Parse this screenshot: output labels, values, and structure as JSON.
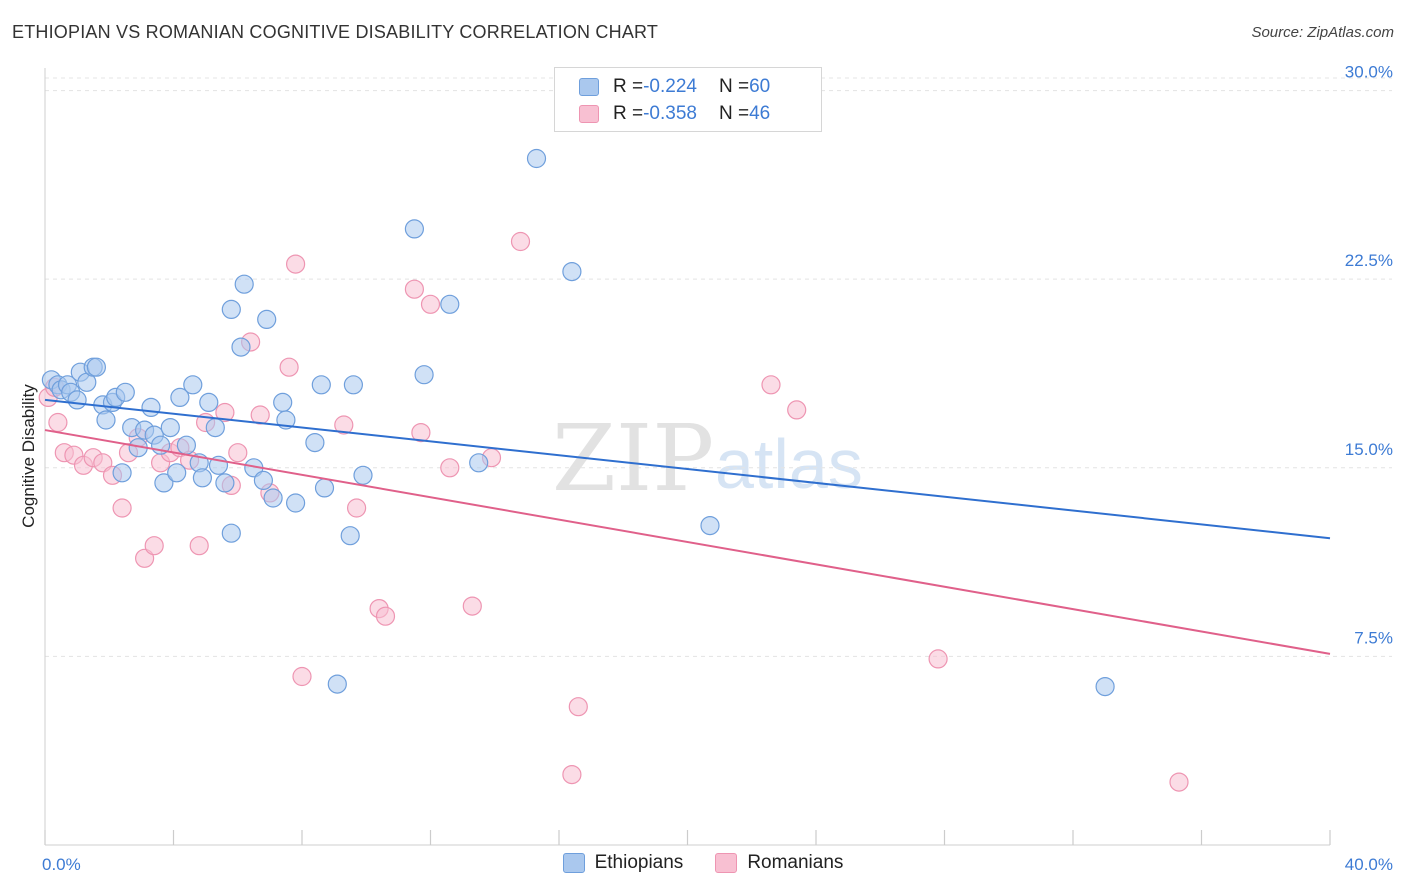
{
  "title": "ETHIOPIAN VS ROMANIAN COGNITIVE DISABILITY CORRELATION CHART",
  "source": "Source: ZipAtlas.com",
  "watermark": {
    "zip": "ZIP",
    "atlas": "atlas"
  },
  "legend": {
    "ethiopians": {
      "r_label": "R = ",
      "r_value": "-0.224",
      "n_label": "N = ",
      "n_value": "60"
    },
    "romanians": {
      "r_label": "R = ",
      "r_value": "-0.358",
      "n_label": "N = ",
      "n_value": "46"
    }
  },
  "bottom_legend": {
    "ethiopians": "Ethiopians",
    "romanians": "Romanians"
  },
  "colors": {
    "ethiopians_fill": "#aac8ee",
    "ethiopians_stroke": "#6f9fdc",
    "ethiopians_line": "#2f6fcf",
    "romanians_fill": "#f8c0d2",
    "romanians_stroke": "#ee95b2",
    "romanians_line": "#e0608a",
    "tick_text": "#3d7bd4"
  },
  "chart_data": {
    "type": "scatter",
    "title": "ETHIOPIAN VS ROMANIAN COGNITIVE DISABILITY CORRELATION CHART",
    "xlabel": "",
    "ylabel": "Cognitive Disability",
    "xlim": [
      0,
      40
    ],
    "ylim": [
      0,
      30.5
    ],
    "x_tick_labels": [
      "0.0%",
      "40.0%"
    ],
    "y_ticks": [
      7.5,
      15.0,
      22.5,
      30.0
    ],
    "y_tick_labels": [
      "7.5%",
      "15.0%",
      "22.5%",
      "30.0%"
    ],
    "grid": true,
    "series": [
      {
        "name": "Ethiopians",
        "trend": {
          "x": [
            0,
            40
          ],
          "y": [
            17.7,
            12.2
          ]
        },
        "points": [
          [
            0.2,
            18.5
          ],
          [
            0.4,
            18.3
          ],
          [
            0.5,
            18.1
          ],
          [
            0.7,
            18.3
          ],
          [
            0.8,
            18.0
          ],
          [
            1.0,
            17.7
          ],
          [
            1.1,
            18.8
          ],
          [
            1.3,
            18.4
          ],
          [
            1.5,
            19.0
          ],
          [
            1.6,
            19.0
          ],
          [
            1.8,
            17.5
          ],
          [
            1.9,
            16.9
          ],
          [
            2.1,
            17.6
          ],
          [
            2.2,
            17.8
          ],
          [
            2.4,
            14.8
          ],
          [
            2.5,
            18.0
          ],
          [
            2.7,
            16.6
          ],
          [
            2.9,
            15.8
          ],
          [
            3.1,
            16.5
          ],
          [
            3.3,
            17.4
          ],
          [
            3.4,
            16.3
          ],
          [
            3.6,
            15.9
          ],
          [
            3.7,
            14.4
          ],
          [
            3.9,
            16.6
          ],
          [
            4.1,
            14.8
          ],
          [
            4.2,
            17.8
          ],
          [
            4.4,
            15.9
          ],
          [
            4.6,
            18.3
          ],
          [
            4.8,
            15.2
          ],
          [
            4.9,
            14.6
          ],
          [
            5.1,
            17.6
          ],
          [
            5.3,
            16.6
          ],
          [
            5.4,
            15.1
          ],
          [
            5.6,
            14.4
          ],
          [
            5.8,
            12.4
          ],
          [
            5.8,
            21.3
          ],
          [
            6.1,
            19.8
          ],
          [
            6.2,
            22.3
          ],
          [
            6.5,
            15.0
          ],
          [
            6.8,
            14.5
          ],
          [
            6.9,
            20.9
          ],
          [
            7.1,
            13.8
          ],
          [
            7.4,
            17.6
          ],
          [
            7.5,
            16.9
          ],
          [
            7.8,
            13.6
          ],
          [
            8.4,
            16.0
          ],
          [
            8.6,
            18.3
          ],
          [
            8.7,
            14.2
          ],
          [
            9.1,
            6.4
          ],
          [
            9.5,
            12.3
          ],
          [
            9.6,
            18.3
          ],
          [
            9.9,
            14.7
          ],
          [
            11.5,
            24.5
          ],
          [
            11.8,
            18.7
          ],
          [
            12.6,
            21.5
          ],
          [
            13.5,
            15.2
          ],
          [
            15.3,
            27.3
          ],
          [
            16.4,
            22.8
          ],
          [
            20.7,
            12.7
          ],
          [
            33.0,
            6.3
          ]
        ]
      },
      {
        "name": "Romanians",
        "trend": {
          "x": [
            0,
            40
          ],
          "y": [
            16.5,
            7.6
          ]
        },
        "points": [
          [
            0.1,
            17.8
          ],
          [
            0.3,
            18.2
          ],
          [
            0.4,
            16.8
          ],
          [
            0.6,
            15.6
          ],
          [
            0.9,
            15.5
          ],
          [
            1.2,
            15.1
          ],
          [
            1.5,
            15.4
          ],
          [
            1.8,
            15.2
          ],
          [
            2.1,
            14.7
          ],
          [
            2.4,
            13.4
          ],
          [
            2.6,
            15.6
          ],
          [
            2.9,
            16.2
          ],
          [
            3.1,
            11.4
          ],
          [
            3.4,
            11.9
          ],
          [
            3.6,
            15.2
          ],
          [
            3.9,
            15.6
          ],
          [
            4.2,
            15.8
          ],
          [
            4.5,
            15.3
          ],
          [
            4.8,
            11.9
          ],
          [
            5.0,
            16.8
          ],
          [
            5.6,
            17.2
          ],
          [
            5.8,
            14.3
          ],
          [
            6.0,
            15.6
          ],
          [
            6.4,
            20.0
          ],
          [
            6.7,
            17.1
          ],
          [
            7.0,
            14.0
          ],
          [
            7.6,
            19.0
          ],
          [
            7.8,
            23.1
          ],
          [
            8.0,
            6.7
          ],
          [
            9.3,
            16.7
          ],
          [
            9.7,
            13.4
          ],
          [
            10.4,
            9.4
          ],
          [
            10.6,
            9.1
          ],
          [
            11.5,
            22.1
          ],
          [
            11.7,
            16.4
          ],
          [
            12.0,
            21.5
          ],
          [
            12.6,
            15.0
          ],
          [
            13.3,
            9.5
          ],
          [
            13.9,
            15.4
          ],
          [
            14.8,
            24.0
          ],
          [
            16.4,
            2.8
          ],
          [
            16.6,
            5.5
          ],
          [
            22.6,
            18.3
          ],
          [
            23.4,
            17.3
          ],
          [
            27.8,
            7.4
          ],
          [
            35.3,
            2.5
          ]
        ]
      }
    ]
  }
}
